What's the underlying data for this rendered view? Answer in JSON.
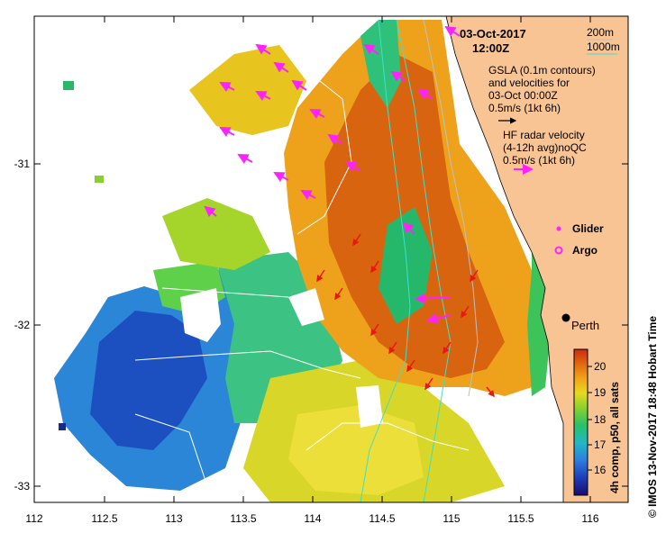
{
  "header": {
    "date": "03-Oct-2017",
    "time": "12:00Z"
  },
  "depth_legend": {
    "shallow": "200m",
    "deep": "1000m"
  },
  "gsla_legend": {
    "line1": "GSLA (0.1m contours)",
    "line2": "and velocities for",
    "line3": "03-Oct 00:00Z",
    "scale": "0.5m/s (1kt 6h)"
  },
  "hf_legend": {
    "line1": "HF radar velocity",
    "line2": "(4-12h avg)noQC",
    "scale": "0.5m/s (1kt 6h)"
  },
  "markers": {
    "glider": "Glider",
    "argo": "Argo",
    "city": "Perth"
  },
  "colorbar": {
    "caption": "4h comp, p50, all sats",
    "ticks": [
      "16",
      "17",
      "18",
      "19",
      "20"
    ],
    "colors": [
      "#1a0a6e",
      "#1c3fb5",
      "#2f7ddf",
      "#22b8c4",
      "#29c16a",
      "#8ad22b",
      "#e8d820",
      "#f0a41a",
      "#e0690f",
      "#cc2a10"
    ]
  },
  "side_credit": "©  IMOS 13-Nov-2017 18:48 Hobart Time",
  "axes": {
    "x_ticks": [
      "112",
      "112.5",
      "113",
      "113.5",
      "114",
      "114.5",
      "115",
      "115.5",
      "116"
    ],
    "y_ticks": [
      "-31",
      "-32",
      "-33"
    ]
  },
  "colors": {
    "land": "#f9c493",
    "hf_arrow": "#ff22ff",
    "gsla_arrow": "#e8190f",
    "depth_200": "#bfbfbf",
    "depth_1000": "#3ee0c8"
  }
}
